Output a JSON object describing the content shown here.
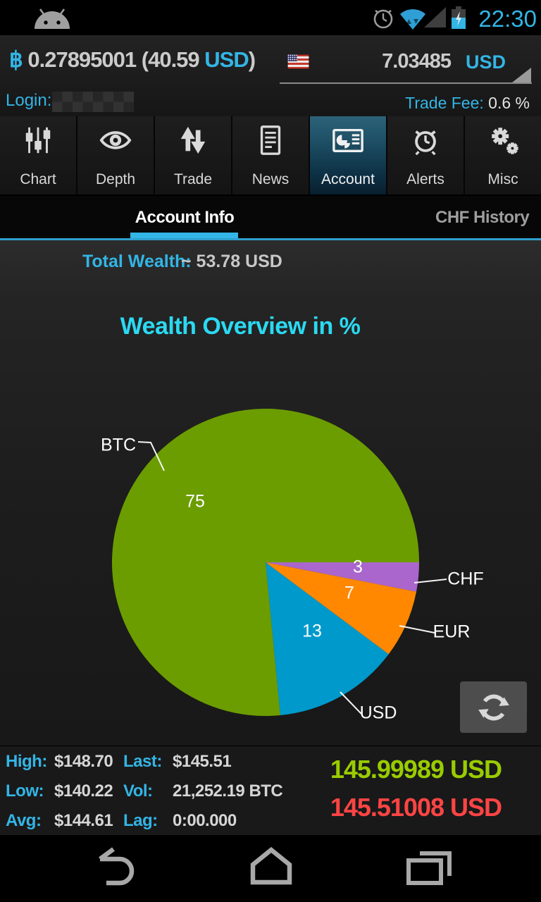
{
  "status_bar": {
    "time": "22:30"
  },
  "header": {
    "btc_symbol": "฿",
    "btc_amount": "0.27895001",
    "fiat_open": "(40.59",
    "fiat_currency": "USD",
    "fiat_close": ")",
    "pair_value": "7.03485",
    "pair_currency": "USD",
    "login_label": "Login:",
    "trade_fee_label": "Trade Fee:",
    "trade_fee_value": "0.6 %"
  },
  "tabs": {
    "selected": "Account",
    "items": [
      {
        "label": "Chart",
        "icon": "sliders-icon"
      },
      {
        "label": "Depth",
        "icon": "eye-icon"
      },
      {
        "label": "Trade",
        "icon": "up-down-arrows-icon"
      },
      {
        "label": "News",
        "icon": "document-icon"
      },
      {
        "label": "Account",
        "icon": "account-card-icon"
      },
      {
        "label": "Alerts",
        "icon": "alarm-clock-icon"
      },
      {
        "label": "Misc",
        "icon": "gears-icon"
      }
    ]
  },
  "subtabs": {
    "selected": "Account Info",
    "items": [
      {
        "label": "Account Info"
      },
      {
        "label": "CHF History"
      }
    ]
  },
  "account": {
    "total_wealth_label": "Total Wealth:",
    "total_wealth_value": "~ 53.78 USD"
  },
  "chart_data": {
    "type": "pie",
    "title": "Wealth Overview in %",
    "unit": "percent",
    "slices": [
      {
        "label": "BTC",
        "value": 75,
        "color": "#6B9D00"
      },
      {
        "label": "USD",
        "value": 13,
        "color": "#0099CC"
      },
      {
        "label": "EUR",
        "value": 7,
        "color": "#FF8800"
      },
      {
        "label": "CHF",
        "value": 3,
        "color": "#AA66CC"
      }
    ],
    "draw_order": [
      "CHF",
      "EUR",
      "USD",
      "BTC"
    ],
    "start_angle_deg": 0,
    "legend_position": "callouts"
  },
  "ticker": {
    "rows": [
      {
        "l1": "High:",
        "v1": "$148.70",
        "l2": "Last:",
        "v2": "$145.51"
      },
      {
        "l1": "Low:",
        "v1": "$140.22",
        "l2": "Vol:",
        "v2": "21,252.19 BTC"
      },
      {
        "l1": "Avg:",
        "v1": "$144.61",
        "l2": "Lag:",
        "v2": "0:00.000"
      }
    ],
    "ask_price": "145.99989 USD",
    "last_price": "145.51008 USD",
    "ask_color": "#99CC00",
    "last_color": "#FF4444"
  },
  "colors": {
    "accent": "#33B5E5",
    "title_cyan": "#2BD9F2"
  }
}
